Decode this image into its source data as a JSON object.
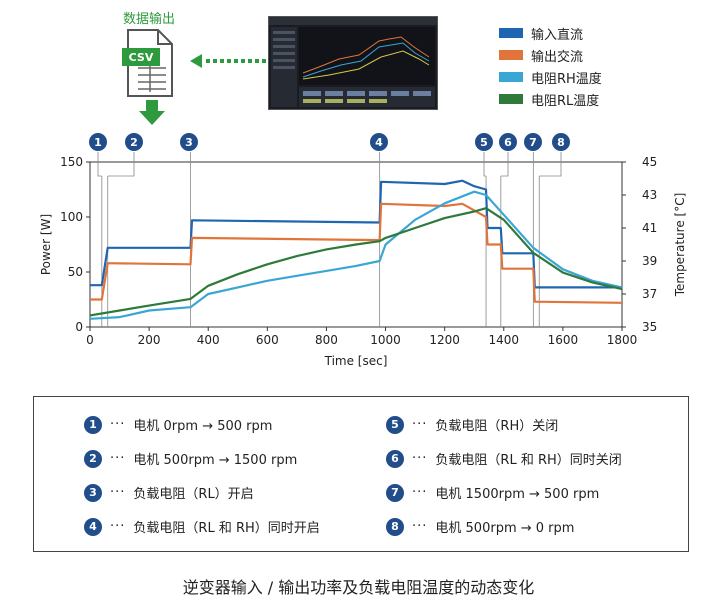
{
  "export": {
    "label": "数据输出",
    "file_badge": "CSV"
  },
  "legend": [
    {
      "label": "输入直流",
      "color": "#1f66b0"
    },
    {
      "label": "输出交流",
      "color": "#e0743a"
    },
    {
      "label": "电阻RH温度",
      "color": "#3aa6d4"
    },
    {
      "label": "电阻RL温度",
      "color": "#2d7a3a"
    }
  ],
  "chart_data": {
    "type": "line",
    "xlabel": "Time [sec]",
    "ylabel_left": "Power [W]",
    "ylabel_right": "Temperature [°C]",
    "xlim": [
      0,
      1800
    ],
    "ylim_left": [
      0,
      150
    ],
    "ylim_right": [
      35,
      45
    ],
    "x_ticks": [
      "0",
      "200",
      "400",
      "600",
      "800",
      "1000",
      "1200",
      "1400",
      "1600",
      "1800"
    ],
    "y_ticks_left": [
      "0",
      "50",
      "100",
      "150"
    ],
    "y_ticks_right": [
      "35",
      "37",
      "39",
      "41",
      "43",
      "45"
    ],
    "markers": [
      {
        "label": "1",
        "x": 40
      },
      {
        "label": "2",
        "x": 60
      },
      {
        "label": "3",
        "x": 340
      },
      {
        "label": "4",
        "x": 980
      },
      {
        "label": "5",
        "x": 1340
      },
      {
        "label": "6",
        "x": 1390
      },
      {
        "label": "7",
        "x": 1500
      },
      {
        "label": "8",
        "x": 1520
      }
    ],
    "series": [
      {
        "name": "输入直流",
        "axis": "left",
        "color": "#1f66b0",
        "points": [
          [
            0,
            38
          ],
          [
            40,
            38
          ],
          [
            60,
            72
          ],
          [
            340,
            72
          ],
          [
            345,
            97
          ],
          [
            980,
            95
          ],
          [
            985,
            132
          ],
          [
            1200,
            130
          ],
          [
            1260,
            133
          ],
          [
            1300,
            128
          ],
          [
            1340,
            125
          ],
          [
            1345,
            90
          ],
          [
            1390,
            90
          ],
          [
            1395,
            67
          ],
          [
            1500,
            67
          ],
          [
            1505,
            36
          ],
          [
            1800,
            36
          ]
        ]
      },
      {
        "name": "输出交流",
        "axis": "left",
        "color": "#e0743a",
        "points": [
          [
            0,
            25
          ],
          [
            40,
            25
          ],
          [
            60,
            58
          ],
          [
            340,
            57
          ],
          [
            345,
            81
          ],
          [
            980,
            79
          ],
          [
            985,
            112
          ],
          [
            1200,
            110
          ],
          [
            1260,
            112
          ],
          [
            1300,
            106
          ],
          [
            1340,
            100
          ],
          [
            1345,
            75
          ],
          [
            1390,
            75
          ],
          [
            1395,
            53
          ],
          [
            1500,
            53
          ],
          [
            1505,
            23
          ],
          [
            1800,
            22
          ]
        ]
      },
      {
        "name": "电阻RH温度",
        "axis": "right",
        "color": "#3aa6d4",
        "points": [
          [
            0,
            35.5
          ],
          [
            100,
            35.6
          ],
          [
            200,
            36.0
          ],
          [
            340,
            36.2
          ],
          [
            400,
            37.0
          ],
          [
            500,
            37.4
          ],
          [
            600,
            37.8
          ],
          [
            700,
            38.1
          ],
          [
            800,
            38.4
          ],
          [
            900,
            38.7
          ],
          [
            980,
            39.0
          ],
          [
            1000,
            40.0
          ],
          [
            1100,
            41.5
          ],
          [
            1200,
            42.5
          ],
          [
            1300,
            43.2
          ],
          [
            1340,
            43.0
          ],
          [
            1400,
            41.8
          ],
          [
            1500,
            39.8
          ],
          [
            1600,
            38.5
          ],
          [
            1700,
            37.8
          ],
          [
            1800,
            37.4
          ]
        ]
      },
      {
        "name": "电阻RL温度",
        "axis": "right",
        "color": "#2d7a3a",
        "points": [
          [
            0,
            35.7
          ],
          [
            100,
            36.0
          ],
          [
            200,
            36.3
          ],
          [
            340,
            36.7
          ],
          [
            400,
            37.5
          ],
          [
            500,
            38.2
          ],
          [
            600,
            38.8
          ],
          [
            700,
            39.3
          ],
          [
            800,
            39.7
          ],
          [
            900,
            40.0
          ],
          [
            980,
            40.2
          ],
          [
            1000,
            40.4
          ],
          [
            1100,
            41.0
          ],
          [
            1200,
            41.6
          ],
          [
            1300,
            42.0
          ],
          [
            1340,
            42.2
          ],
          [
            1400,
            41.5
          ],
          [
            1500,
            39.5
          ],
          [
            1600,
            38.3
          ],
          [
            1700,
            37.7
          ],
          [
            1800,
            37.3
          ]
        ]
      }
    ]
  },
  "steps": [
    {
      "num": "1",
      "dots": "···",
      "text": "电机 0rpm → 500 rpm"
    },
    {
      "num": "2",
      "dots": "···",
      "text": "电机 500rpm → 1500 rpm"
    },
    {
      "num": "3",
      "dots": "···",
      "text": "负载电阻（RL）开启"
    },
    {
      "num": "4",
      "dots": "···",
      "text": "负载电阻（RL 和 RH）同时开启"
    },
    {
      "num": "5",
      "dots": "···",
      "text": "负载电阻（RH）关闭"
    },
    {
      "num": "6",
      "dots": "···",
      "text": "负载电阻（RL 和 RH）同时关闭"
    },
    {
      "num": "7",
      "dots": "···",
      "text": "电机 1500rpm → 500 rpm"
    },
    {
      "num": "8",
      "dots": "···",
      "text": "电机 500rpm → 0 rpm"
    }
  ],
  "caption": "逆变器输入 / 输出功率及负载电阻温度的动态变化"
}
